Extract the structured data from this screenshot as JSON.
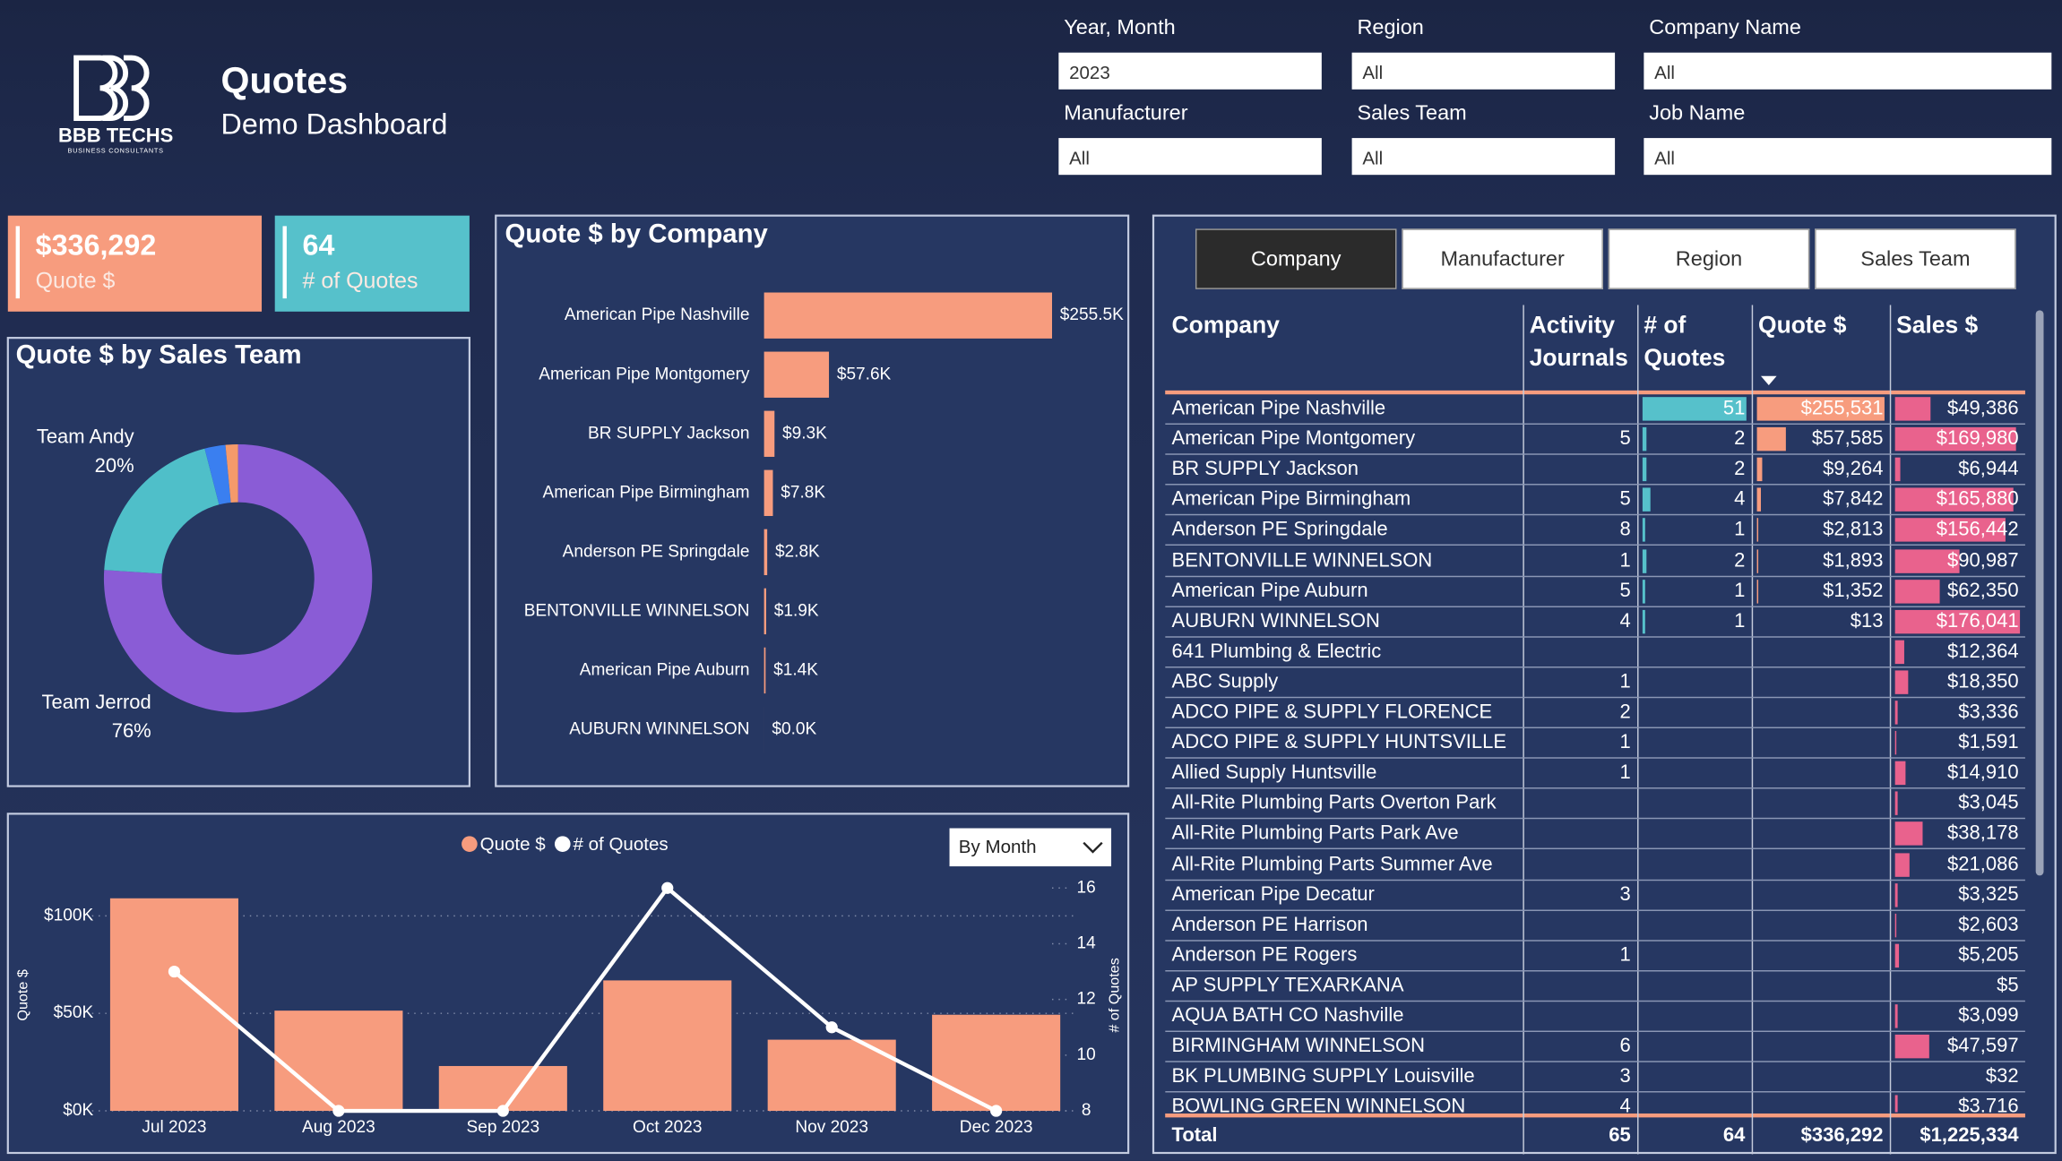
{
  "header": {
    "logo_text": "BBB TECHS",
    "logo_sub": "BUSINESS CONSULTANTS",
    "title": "Quotes",
    "subtitle": "Demo Dashboard"
  },
  "filters": [
    {
      "label": "Year, Month",
      "value": "2023"
    },
    {
      "label": "Region",
      "value": "All"
    },
    {
      "label": "Company Name",
      "value": "All"
    },
    {
      "label": "Manufacturer",
      "value": "All"
    },
    {
      "label": "Sales Team",
      "value": "All"
    },
    {
      "label": "Job Name",
      "value": "All"
    }
  ],
  "kpis": [
    {
      "value": "$336,292",
      "label": "Quote $",
      "color": "#f79c7e"
    },
    {
      "value": "64",
      "label": "# of Quotes",
      "color": "#56c1cb"
    }
  ],
  "chart_data": [
    {
      "type": "donut",
      "title": "Quote $ by Sales Team",
      "categories": [
        "Team Jerrod",
        "Team Andy",
        null,
        null
      ],
      "values": [
        76,
        20,
        2.5,
        1.5
      ],
      "value_labels": [
        "76%",
        "20%",
        null,
        null
      ],
      "colors": [
        "#8a5cd6",
        "#4fbfc9",
        "#3a7ff0",
        "#f59a6a"
      ]
    },
    {
      "type": "bar",
      "orientation": "horizontal",
      "title": "Quote $ by Company",
      "categories": [
        "American Pipe Nashville",
        "American Pipe Montgomery",
        "BR SUPPLY Jackson",
        "American Pipe Birmingham",
        "Anderson PE Springdale",
        "BENTONVILLE WINNELSON",
        "American Pipe Auburn",
        "AUBURN WINNELSON"
      ],
      "values": [
        255531,
        57585,
        9264,
        7842,
        2813,
        1893,
        1352,
        13
      ],
      "value_labels": [
        "$255.5K",
        "$57.6K",
        "$9.3K",
        "$7.8K",
        "$2.8K",
        "$1.9K",
        "$1.4K",
        "$0.0K"
      ],
      "color": "#f79c7e"
    },
    {
      "type": "combo",
      "dropdown": "By Month",
      "categories": [
        "Jul 2023",
        "Aug 2023",
        "Sep 2023",
        "Oct 2023",
        "Nov 2023",
        "Dec 2023"
      ],
      "series": [
        {
          "name": "Quote $",
          "type": "bar",
          "color": "#f79c7e",
          "values": [
            109000,
            51400,
            23000,
            66900,
            36500,
            49300
          ]
        },
        {
          "name": "# of Quotes",
          "type": "line",
          "axis": "y2",
          "color": "#ffffff",
          "values": [
            13,
            8,
            8,
            16,
            11,
            8
          ]
        }
      ],
      "y_label": "Quote $",
      "y2_label": "# of Quotes",
      "ylim": [
        0,
        120000
      ],
      "yticks": [
        {
          "value": 0,
          "label": "$0K"
        },
        {
          "value": 50000,
          "label": "$50K"
        },
        {
          "value": 100000,
          "label": "$100K"
        }
      ],
      "y2lim": [
        8,
        16.4
      ],
      "y2ticks": [
        8,
        10,
        12,
        14,
        16
      ],
      "grid": true
    }
  ],
  "table": {
    "tabs": [
      "Company",
      "Manufacturer",
      "Region",
      "Sales Team"
    ],
    "active_tab": 0,
    "columns": [
      "Company",
      "Activity Journals",
      "# of Quotes",
      "Quote $",
      "Sales $"
    ],
    "sort_column": 3,
    "column_colors": [
      null,
      null,
      "#56c1cb",
      "#f79c7e",
      "#e9628d"
    ],
    "rows": [
      [
        "American Pipe Nashville",
        null,
        "51",
        "$255,531",
        "$49,386"
      ],
      [
        "American Pipe Montgomery",
        "5",
        "2",
        "$57,585",
        "$169,980"
      ],
      [
        "BR SUPPLY Jackson",
        null,
        "2",
        "$9,264",
        "$6,944"
      ],
      [
        "American Pipe Birmingham",
        "5",
        "4",
        "$7,842",
        "$165,880"
      ],
      [
        "Anderson PE Springdale",
        "8",
        "1",
        "$2,813",
        "$156,442"
      ],
      [
        "BENTONVILLE WINNELSON",
        "1",
        "2",
        "$1,893",
        "$90,987"
      ],
      [
        "American Pipe Auburn",
        "5",
        "1",
        "$1,352",
        "$62,350"
      ],
      [
        "AUBURN WINNELSON",
        "4",
        "1",
        "$13",
        "$176,041"
      ],
      [
        "641 Plumbing & Electric",
        null,
        null,
        null,
        "$12,364"
      ],
      [
        "ABC Supply",
        "1",
        null,
        null,
        "$18,350"
      ],
      [
        "ADCO PIPE & SUPPLY FLORENCE",
        "2",
        null,
        null,
        "$3,336"
      ],
      [
        "ADCO PIPE & SUPPLY HUNTSVILLE",
        "1",
        null,
        null,
        "$1,591"
      ],
      [
        "Allied Supply Huntsville",
        "1",
        null,
        null,
        "$14,910"
      ],
      [
        "All-Rite Plumbing Parts Overton Park",
        null,
        null,
        null,
        "$3,045"
      ],
      [
        "All-Rite Plumbing Parts Park Ave",
        null,
        null,
        null,
        "$38,178"
      ],
      [
        "All-Rite Plumbing Parts Summer Ave",
        null,
        null,
        null,
        "$21,086"
      ],
      [
        "American Pipe Decatur",
        "3",
        null,
        null,
        "$3,325"
      ],
      [
        "Anderson PE Harrison",
        null,
        null,
        null,
        "$2,603"
      ],
      [
        "Anderson PE Rogers",
        "1",
        null,
        null,
        "$5,205"
      ],
      [
        "AP SUPPLY TEXARKANA",
        null,
        null,
        null,
        "$5"
      ],
      [
        "AQUA BATH CO Nashville",
        null,
        null,
        null,
        "$3,099"
      ],
      [
        "BIRMINGHAM WINNELSON",
        "6",
        null,
        null,
        "$47,597"
      ],
      [
        "BK PLUMBING SUPPLY Louisville",
        "3",
        null,
        null,
        "$32"
      ],
      [
        "BOWLING GREEN WINNELSON",
        "4",
        null,
        null,
        "$3,716"
      ]
    ],
    "total": [
      "Total",
      "65",
      "64",
      "$336,292",
      "$1,225,334"
    ]
  }
}
